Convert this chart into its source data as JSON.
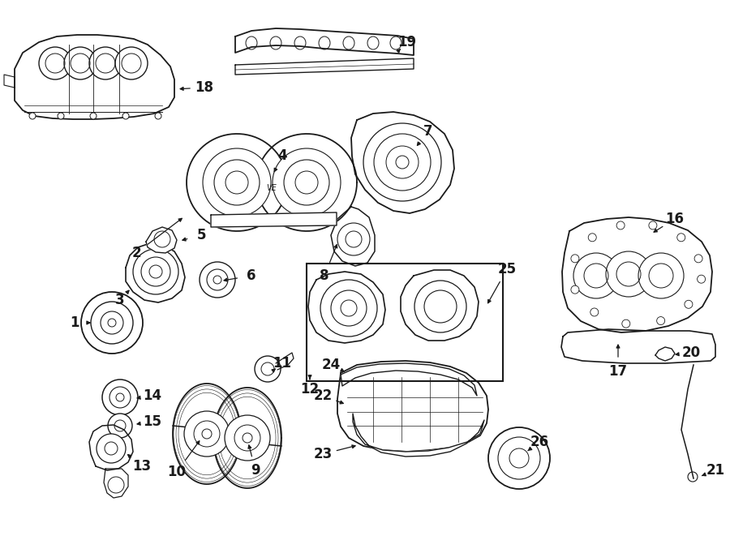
{
  "bg_color": "#ffffff",
  "line_color": "#1a1a1a",
  "figsize": [
    9.0,
    6.61
  ],
  "dpi": 100,
  "border": "#888888"
}
